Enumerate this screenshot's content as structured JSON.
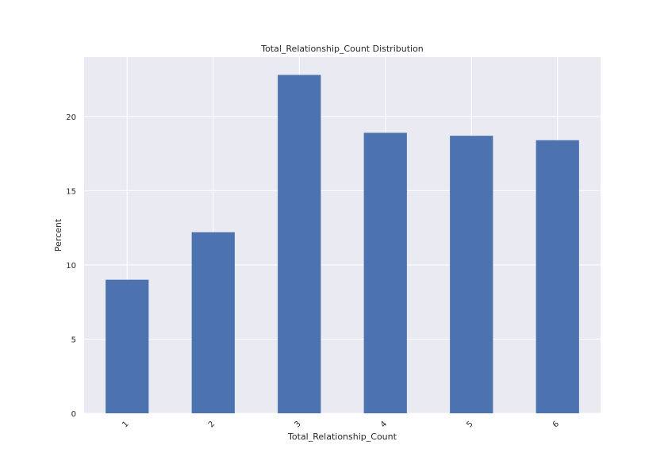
{
  "chart_data": {
    "type": "bar",
    "title": "Total_Relationship_Count Distribution",
    "xlabel": "Total_Relationship_Count",
    "ylabel": "Percent",
    "categories": [
      "1",
      "2",
      "3",
      "4",
      "5",
      "6"
    ],
    "values": [
      9.0,
      12.2,
      22.8,
      18.9,
      18.7,
      18.4
    ],
    "ylim": [
      0,
      24
    ],
    "yticks": [
      0,
      5,
      10,
      15,
      20
    ],
    "grid": true,
    "bar_color": "#4c72b0",
    "background_color": "#eaeaf2",
    "xtick_rotation": "45 degrees"
  }
}
